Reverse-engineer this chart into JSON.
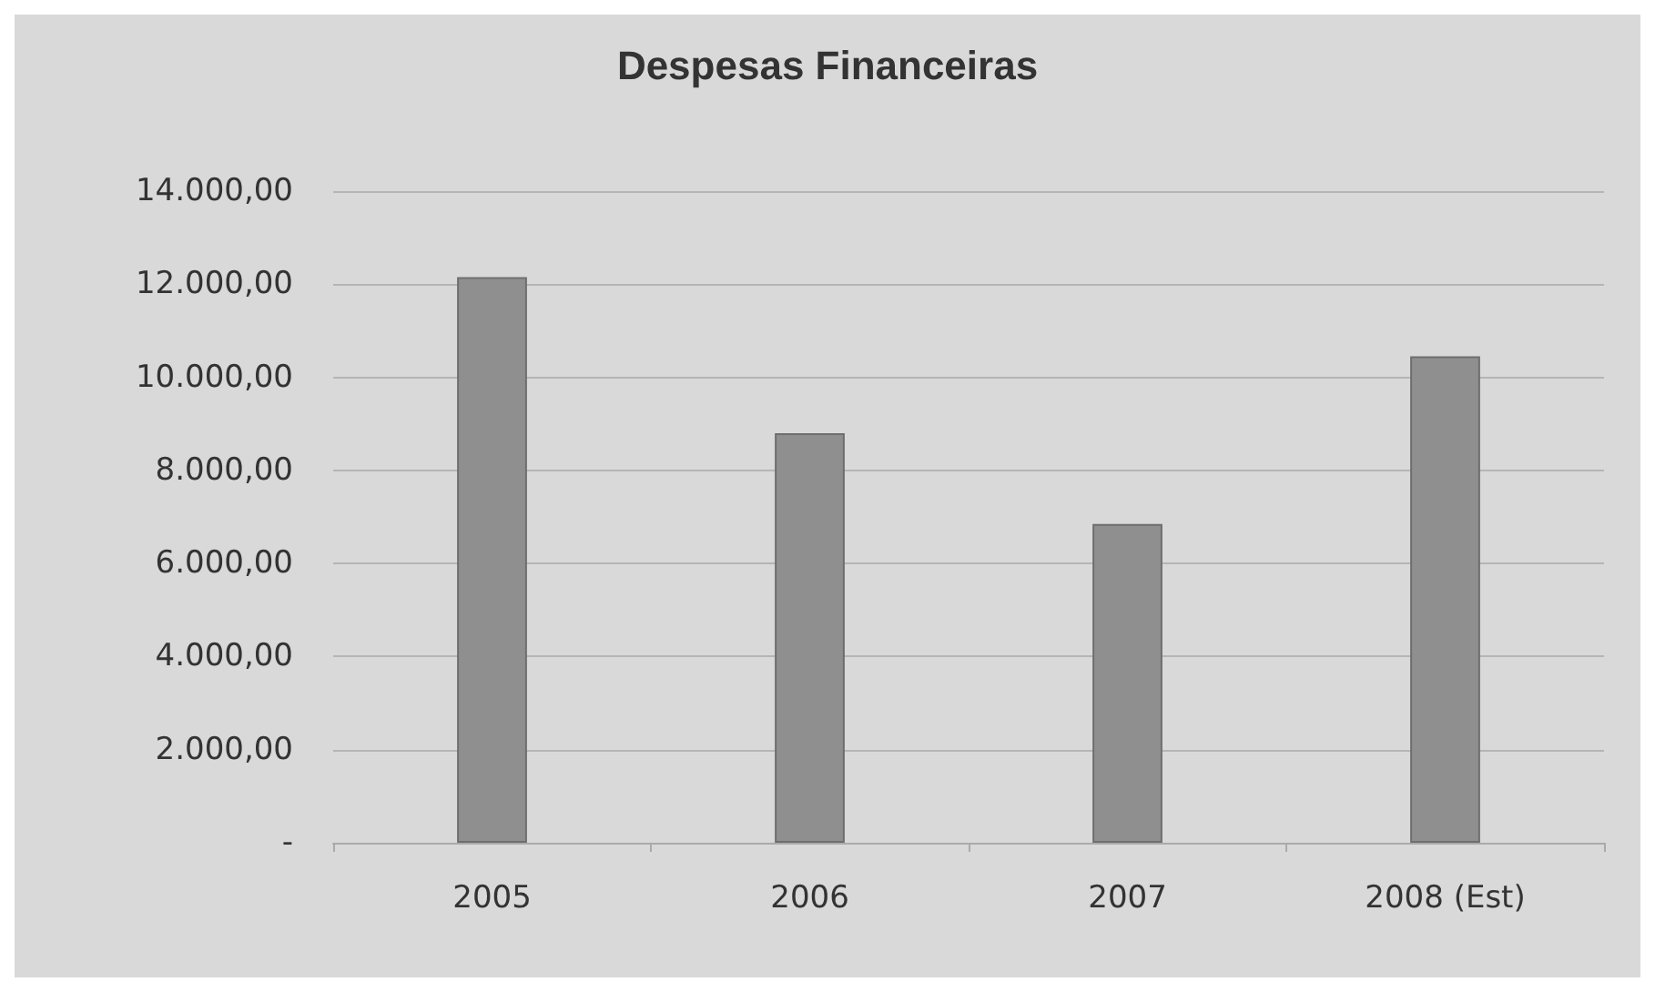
{
  "chart_data": {
    "type": "bar",
    "title": "Despesas Financeiras",
    "categories": [
      "2005",
      "2006",
      "2007",
      "2008 (Est)"
    ],
    "values": [
      12150,
      8800,
      6850,
      10450
    ],
    "color": "#8f8f8f",
    "ylim": [
      0,
      14000
    ],
    "yticks": [
      {
        "value": 0,
        "label": "-"
      },
      {
        "value": 2000,
        "label": "2.000,00"
      },
      {
        "value": 4000,
        "label": "4.000,00"
      },
      {
        "value": 6000,
        "label": "6.000,00"
      },
      {
        "value": 8000,
        "label": "8.000,00"
      },
      {
        "value": 10000,
        "label": "10.000,00"
      },
      {
        "value": 12000,
        "label": "12.000,00"
      },
      {
        "value": 14000,
        "label": "14.000,00"
      }
    ],
    "grid": "y"
  }
}
